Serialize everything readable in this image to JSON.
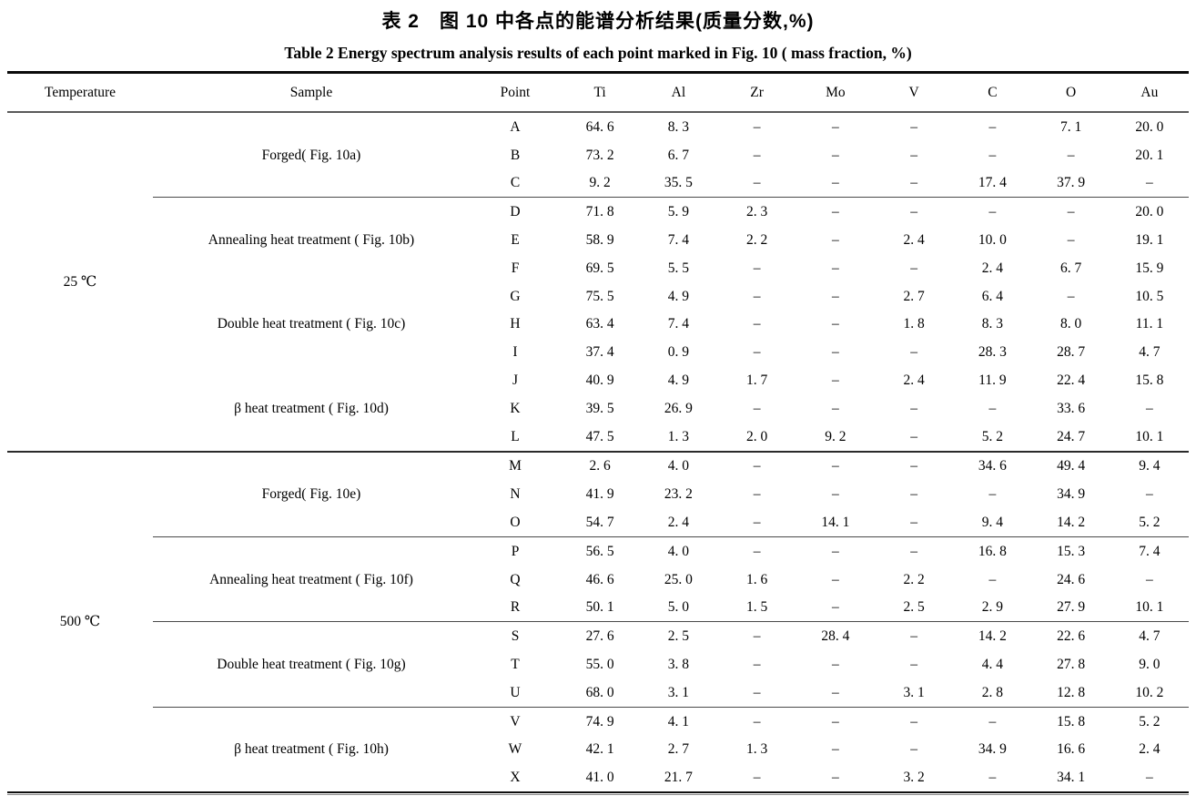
{
  "titles": {
    "chinese": "表 2　图 10 中各点的能谱分析结果(质量分数,%)",
    "english": "Table 2   Energy spectrum analysis results of each point marked in Fig. 10 ( mass fraction, %)"
  },
  "colors": {
    "text": "#000000",
    "rule_dark": "#0a0a0a",
    "rule_gray": "#8a8a8a"
  },
  "table": {
    "columns": [
      "Temperature",
      "Sample",
      "Point",
      "Ti",
      "Al",
      "Zr",
      "Mo",
      "V",
      "C",
      "O",
      "Au"
    ],
    "sections": [
      {
        "temperature": "25 ℃",
        "rule_above": false,
        "samples": [
          {
            "label": "Forged( Fig. 10a)",
            "rule_above": false,
            "rows": [
              {
                "point": "A",
                "values": [
                  "64. 6",
                  "8. 3",
                  "–",
                  "–",
                  "–",
                  "–",
                  "7. 1",
                  "20. 0"
                ]
              },
              {
                "point": "B",
                "values": [
                  "73. 2",
                  "6. 7",
                  "–",
                  "–",
                  "–",
                  "–",
                  "–",
                  "20. 1"
                ]
              },
              {
                "point": "C",
                "values": [
                  "9. 2",
                  "35. 5",
                  "–",
                  "–",
                  "–",
                  "17. 4",
                  "37. 9",
                  "–"
                ]
              }
            ]
          },
          {
            "label": "Annealing heat treatment ( Fig. 10b)",
            "rule_above": true,
            "rows": [
              {
                "point": "D",
                "values": [
                  "71. 8",
                  "5. 9",
                  "2. 3",
                  "–",
                  "–",
                  "–",
                  "–",
                  "20. 0"
                ]
              },
              {
                "point": "E",
                "values": [
                  "58. 9",
                  "7. 4",
                  "2. 2",
                  "–",
                  "2. 4",
                  "10. 0",
                  "–",
                  "19. 1"
                ]
              },
              {
                "point": "F",
                "values": [
                  "69. 5",
                  "5. 5",
                  "–",
                  "–",
                  "–",
                  "2. 4",
                  "6. 7",
                  "15. 9"
                ]
              }
            ]
          },
          {
            "label": "Double heat treatment ( Fig. 10c)",
            "rule_above": false,
            "rows": [
              {
                "point": "G",
                "values": [
                  "75. 5",
                  "4. 9",
                  "–",
                  "–",
                  "2. 7",
                  "6. 4",
                  "–",
                  "10. 5"
                ]
              },
              {
                "point": "H",
                "values": [
                  "63. 4",
                  "7. 4",
                  "–",
                  "–",
                  "1. 8",
                  "8. 3",
                  "8. 0",
                  "11. 1"
                ]
              },
              {
                "point": "I",
                "values": [
                  "37. 4",
                  "0. 9",
                  "–",
                  "–",
                  "–",
                  "28. 3",
                  "28. 7",
                  "4. 7"
                ]
              }
            ]
          },
          {
            "label": "β heat treatment ( Fig. 10d)",
            "rule_above": false,
            "rows": [
              {
                "point": "J",
                "values": [
                  "40. 9",
                  "4. 9",
                  "1. 7",
                  "–",
                  "2. 4",
                  "11. 9",
                  "22. 4",
                  "15. 8"
                ]
              },
              {
                "point": "K",
                "values": [
                  "39. 5",
                  "26. 9",
                  "–",
                  "–",
                  "–",
                  "–",
                  "33. 6",
                  "–"
                ]
              },
              {
                "point": "L",
                "values": [
                  "47. 5",
                  "1. 3",
                  "2. 0",
                  "9. 2",
                  "–",
                  "5. 2",
                  "24. 7",
                  "10. 1"
                ]
              }
            ]
          }
        ]
      },
      {
        "temperature": "500 ℃",
        "rule_above": true,
        "samples": [
          {
            "label": "Forged( Fig. 10e)",
            "rule_above": false,
            "rows": [
              {
                "point": "M",
                "values": [
                  "2. 6",
                  "4. 0",
                  "–",
                  "–",
                  "–",
                  "34. 6",
                  "49. 4",
                  "9. 4"
                ]
              },
              {
                "point": "N",
                "values": [
                  "41. 9",
                  "23. 2",
                  "–",
                  "–",
                  "–",
                  "–",
                  "34. 9",
                  "–"
                ]
              },
              {
                "point": "O",
                "values": [
                  "54. 7",
                  "2. 4",
                  "–",
                  "14. 1",
                  "–",
                  "9. 4",
                  "14. 2",
                  "5. 2"
                ]
              }
            ]
          },
          {
            "label": "Annealing heat treatment ( Fig. 10f)",
            "rule_above": true,
            "rows": [
              {
                "point": "P",
                "values": [
                  "56. 5",
                  "4. 0",
                  "–",
                  "–",
                  "–",
                  "16. 8",
                  "15. 3",
                  "7. 4"
                ]
              },
              {
                "point": "Q",
                "values": [
                  "46. 6",
                  "25. 0",
                  "1. 6",
                  "–",
                  "2. 2",
                  "–",
                  "24. 6",
                  "–"
                ]
              },
              {
                "point": "R",
                "values": [
                  "50. 1",
                  "5. 0",
                  "1. 5",
                  "–",
                  "2. 5",
                  "2. 9",
                  "27. 9",
                  "10. 1"
                ]
              }
            ]
          },
          {
            "label": "Double heat treatment ( Fig. 10g)",
            "rule_above": true,
            "rows": [
              {
                "point": "S",
                "values": [
                  "27. 6",
                  "2. 5",
                  "–",
                  "28. 4",
                  "–",
                  "14. 2",
                  "22. 6",
                  "4. 7"
                ]
              },
              {
                "point": "T",
                "values": [
                  "55. 0",
                  "3. 8",
                  "–",
                  "–",
                  "–",
                  "4. 4",
                  "27. 8",
                  "9. 0"
                ]
              },
              {
                "point": "U",
                "values": [
                  "68. 0",
                  "3. 1",
                  "–",
                  "–",
                  "3. 1",
                  "2. 8",
                  "12. 8",
                  "10. 2"
                ]
              }
            ]
          },
          {
            "label": "β heat treatment ( Fig. 10h)",
            "rule_above": true,
            "rows": [
              {
                "point": "V",
                "values": [
                  "74. 9",
                  "4. 1",
                  "–",
                  "–",
                  "–",
                  "–",
                  "15. 8",
                  "5. 2"
                ]
              },
              {
                "point": "W",
                "values": [
                  "42. 1",
                  "2. 7",
                  "1. 3",
                  "–",
                  "–",
                  "34. 9",
                  "16. 6",
                  "2. 4"
                ]
              },
              {
                "point": "X",
                "values": [
                  "41. 0",
                  "21. 7",
                  "–",
                  "–",
                  "3. 2",
                  "–",
                  "34. 1",
                  "–"
                ]
              }
            ]
          }
        ]
      }
    ]
  }
}
